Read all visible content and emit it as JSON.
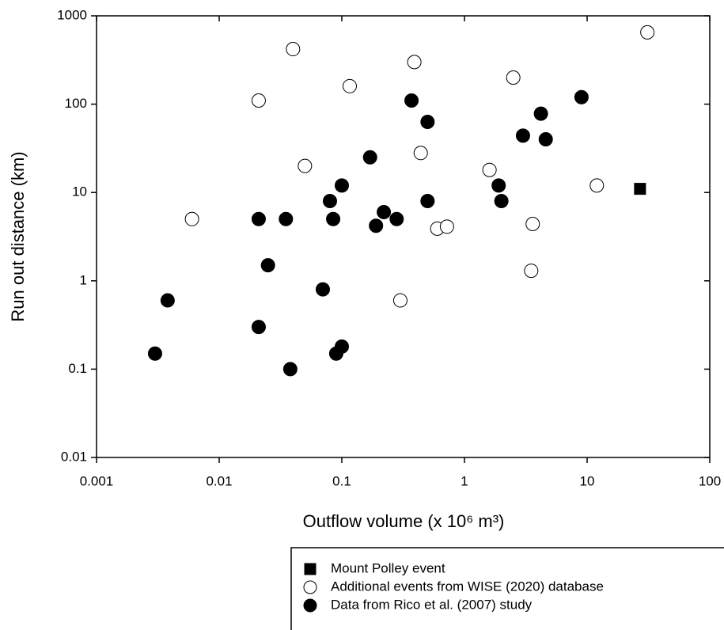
{
  "chart_data": {
    "type": "scatter",
    "xlabel": "Outflow volume (x 10⁶ m³)",
    "ylabel": "Run out distance (km)",
    "xscale": "log",
    "yscale": "log",
    "xlim": [
      0.001,
      100
    ],
    "ylim": [
      0.01,
      1000
    ],
    "xticks": [
      0.001,
      0.01,
      0.1,
      1,
      10,
      100
    ],
    "yticks": [
      0.01,
      0.1,
      1,
      10,
      100,
      1000
    ],
    "legend": "bottom-right",
    "series": [
      {
        "name": "Mount Polley event",
        "color": "#000000",
        "marker": "square",
        "filled": true,
        "x": [
          27
        ],
        "values": [
          11
        ]
      },
      {
        "name": "Additional events from WISE (2020) database",
        "color": "#000000",
        "marker": "circle",
        "filled": false,
        "x": [
          0.006,
          0.04,
          0.021,
          0.116,
          0.39,
          0.05,
          0.44,
          2.5,
          31,
          1.6,
          12,
          0.6,
          0.72,
          3.6,
          3.5,
          0.3
        ],
        "values": [
          5,
          420,
          110,
          160,
          300,
          20,
          28,
          200,
          650,
          18,
          12,
          3.9,
          4.1,
          4.4,
          1.3,
          0.6
        ]
      },
      {
        "name": "Data from Rico et al. (2007) study",
        "color": "#000000",
        "marker": "circle",
        "filled": true,
        "x": [
          0.003,
          0.0038,
          0.021,
          0.021,
          0.025,
          0.035,
          0.038,
          0.07,
          0.08,
          0.085,
          0.09,
          0.1,
          0.1,
          0.17,
          0.19,
          0.22,
          0.28,
          0.37,
          0.5,
          0.5,
          1.9,
          2,
          3,
          4.2,
          4.6,
          9
        ],
        "values": [
          0.15,
          0.6,
          0.3,
          5,
          1.5,
          5,
          0.1,
          0.8,
          8,
          5,
          0.15,
          12,
          0.18,
          25,
          4.2,
          6,
          5,
          110,
          63,
          8,
          12,
          8,
          44,
          78,
          40,
          120
        ]
      }
    ]
  }
}
